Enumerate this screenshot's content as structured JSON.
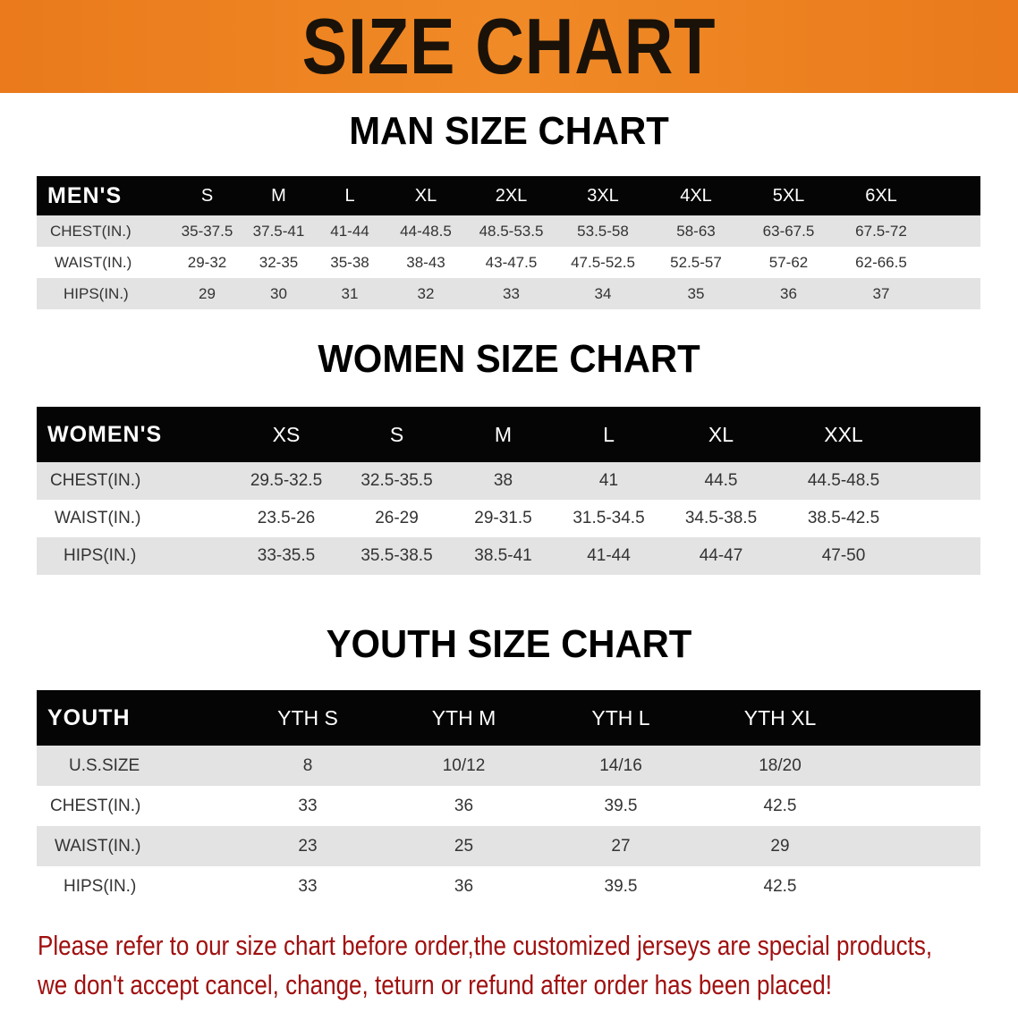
{
  "banner_title": "SIZE CHART",
  "men": {
    "title": "MAN SIZE CHART",
    "header": [
      "MEN'S",
      "S",
      "M",
      "L",
      "XL",
      "2XL",
      "3XL",
      "4XL",
      "5XL",
      "6XL"
    ],
    "rows": [
      [
        "CHEST(IN.)",
        "35-37.5",
        "37.5-41",
        "41-44",
        "44-48.5",
        "48.5-53.5",
        "53.5-58",
        "58-63",
        "63-67.5",
        "67.5-72"
      ],
      [
        "WAIST(IN.)",
        "29-32",
        "32-35",
        "35-38",
        "38-43",
        "43-47.5",
        "47.5-52.5",
        "52.5-57",
        "57-62",
        "62-66.5"
      ],
      [
        "HIPS(IN.)",
        "29",
        "30",
        "31",
        "32",
        "33",
        "34",
        "35",
        "36",
        "37"
      ]
    ]
  },
  "women": {
    "title": "WOMEN SIZE CHART",
    "header": [
      "WOMEN'S",
      "XS",
      "S",
      "M",
      "L",
      "XL",
      "XXL"
    ],
    "rows": [
      [
        "CHEST(IN.)",
        "29.5-32.5",
        "32.5-35.5",
        "38",
        "41",
        "44.5",
        "44.5-48.5"
      ],
      [
        "WAIST(IN.)",
        "23.5-26",
        "26-29",
        "29-31.5",
        "31.5-34.5",
        "34.5-38.5",
        "38.5-42.5"
      ],
      [
        "HIPS(IN.)",
        "33-35.5",
        "35.5-38.5",
        "38.5-41",
        "41-44",
        "44-47",
        "47-50"
      ]
    ]
  },
  "youth": {
    "title": "YOUTH SIZE CHART",
    "header": [
      "YOUTH",
      "YTH S",
      "YTH M",
      "YTH L",
      "YTH XL"
    ],
    "rows": [
      [
        "U.S.SIZE",
        "8",
        "10/12",
        "14/16",
        "18/20"
      ],
      [
        "CHEST(IN.)",
        "33",
        "36",
        "39.5",
        "42.5"
      ],
      [
        "WAIST(IN.)",
        "23",
        "25",
        "27",
        "29"
      ],
      [
        "HIPS(IN.)",
        "33",
        "36",
        "39.5",
        "42.5"
      ]
    ]
  },
  "note": {
    "line1": "Please refer to our size chart before order,the customized jerseys are special products,",
    "line2": "we don't accept cancel, change, teturn or refund after order has been placed!"
  },
  "colors": {
    "banner": "#ee801f",
    "header_bg": "#050505",
    "row_gray": "#e3e3e3",
    "note": "#a01010"
  }
}
